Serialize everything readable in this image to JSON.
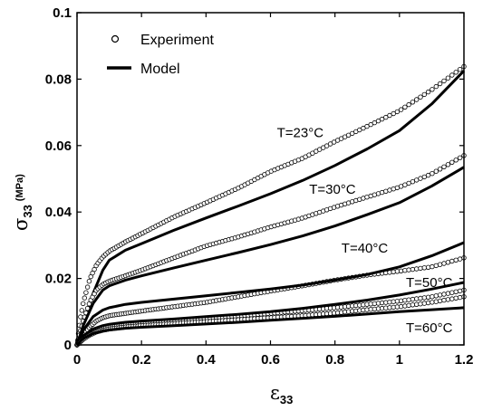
{
  "chart_data": {
    "type": "scatter",
    "title": "",
    "xlabel": {
      "symbol": "ε",
      "subscript": "33"
    },
    "ylabel": {
      "symbol": "σ",
      "subscript": "33",
      "unit": "(MPa)"
    },
    "xlim": [
      0,
      1.2
    ],
    "ylim": [
      0,
      0.1
    ],
    "x_ticks": [
      "0",
      "0.2",
      "0.4",
      "0.6",
      "0.8",
      "1",
      "1.2"
    ],
    "y_ticks": [
      "0",
      "0.02",
      "0.04",
      "0.06",
      "0.08",
      "0.1"
    ],
    "grid": false,
    "legend": {
      "placement": "top-left",
      "entries": [
        {
          "label": "Experiment",
          "marker": "open-circle"
        },
        {
          "label": "Model",
          "marker": "thick-line"
        }
      ]
    },
    "series": [
      {
        "label": "T=23°C",
        "label_at": [
          0.62,
          0.0625
        ],
        "model": {
          "x": [
            0,
            0.02,
            0.05,
            0.08,
            0.1,
            0.15,
            0.2,
            0.3,
            0.4,
            0.5,
            0.6,
            0.7,
            0.8,
            0.9,
            1.0,
            1.1,
            1.2
          ],
          "y": [
            0,
            0.0065,
            0.0155,
            0.0225,
            0.0255,
            0.0285,
            0.0305,
            0.0345,
            0.0382,
            0.0418,
            0.0455,
            0.0495,
            0.054,
            0.059,
            0.0645,
            0.0725,
            0.0825
          ]
        },
        "experiment": {
          "x": [
            0,
            0.01,
            0.02,
            0.04,
            0.06,
            0.08,
            0.1,
            0.15,
            0.2,
            0.3,
            0.4,
            0.5,
            0.6,
            0.7,
            0.8,
            0.9,
            1.0,
            1.1,
            1.2
          ],
          "y": [
            0,
            0.008,
            0.013,
            0.02,
            0.024,
            0.0265,
            0.0282,
            0.031,
            0.0335,
            0.0385,
            0.0428,
            0.0472,
            0.0522,
            0.0562,
            0.0612,
            0.0658,
            0.0705,
            0.0768,
            0.0838
          ]
        }
      },
      {
        "label": "T=30°C",
        "label_at": [
          0.72,
          0.0455
        ],
        "model": {
          "x": [
            0,
            0.02,
            0.05,
            0.08,
            0.1,
            0.15,
            0.2,
            0.3,
            0.4,
            0.5,
            0.6,
            0.7,
            0.8,
            0.9,
            1.0,
            1.1,
            1.2
          ],
          "y": [
            0,
            0.006,
            0.0125,
            0.0165,
            0.0178,
            0.0195,
            0.0208,
            0.0232,
            0.0255,
            0.0278,
            0.0302,
            0.0328,
            0.0358,
            0.0392,
            0.0428,
            0.0478,
            0.0535
          ]
        },
        "experiment": {
          "x": [
            0,
            0.01,
            0.02,
            0.04,
            0.06,
            0.08,
            0.1,
            0.15,
            0.2,
            0.3,
            0.4,
            0.5,
            0.6,
            0.7,
            0.8,
            0.9,
            1.0,
            1.1,
            1.2
          ],
          "y": [
            0,
            0.004,
            0.0075,
            0.013,
            0.0165,
            0.0182,
            0.0192,
            0.0208,
            0.0225,
            0.0262,
            0.0298,
            0.0325,
            0.0355,
            0.0382,
            0.0415,
            0.0445,
            0.0475,
            0.0515,
            0.057
          ]
        }
      },
      {
        "label": "T=40°C",
        "label_at": [
          0.82,
          0.0278
        ],
        "model": {
          "x": [
            0,
            0.02,
            0.05,
            0.08,
            0.1,
            0.15,
            0.2,
            0.3,
            0.4,
            0.5,
            0.6,
            0.7,
            0.8,
            0.9,
            1.0,
            1.1,
            1.2
          ],
          "y": [
            0,
            0.0045,
            0.0085,
            0.0105,
            0.0112,
            0.0122,
            0.0128,
            0.0138,
            0.0148,
            0.0158,
            0.0168,
            0.018,
            0.0195,
            0.0212,
            0.0235,
            0.0268,
            0.0308
          ]
        },
        "experiment": {
          "x": [
            0,
            0.02,
            0.04,
            0.06,
            0.08,
            0.1,
            0.15,
            0.2,
            0.3,
            0.4,
            0.5,
            0.6,
            0.7,
            0.8,
            0.9,
            1.0,
            1.1,
            1.2
          ],
          "y": [
            0,
            0.003,
            0.0055,
            0.0072,
            0.0082,
            0.0088,
            0.0095,
            0.0102,
            0.0115,
            0.0128,
            0.0145,
            0.0162,
            0.0178,
            0.0195,
            0.021,
            0.0222,
            0.0235,
            0.0262
          ]
        }
      },
      {
        "label": "T=50°C",
        "label_at": [
          1.02,
          0.0175
        ],
        "model": {
          "x": [
            0,
            0.02,
            0.05,
            0.08,
            0.1,
            0.15,
            0.2,
            0.3,
            0.4,
            0.5,
            0.6,
            0.7,
            0.8,
            0.9,
            1.0,
            1.1,
            1.2
          ],
          "y": [
            0,
            0.0028,
            0.0048,
            0.0058,
            0.0062,
            0.0068,
            0.0072,
            0.0078,
            0.0085,
            0.0092,
            0.01,
            0.011,
            0.0122,
            0.0135,
            0.015,
            0.0168,
            0.0188
          ]
        },
        "experiment": {
          "x": [
            0,
            0.02,
            0.04,
            0.06,
            0.08,
            0.1,
            0.15,
            0.2,
            0.3,
            0.4,
            0.5,
            0.6,
            0.7,
            0.8,
            0.9,
            1.0,
            1.1,
            1.2
          ],
          "y": [
            0,
            0.0022,
            0.0035,
            0.0044,
            0.005,
            0.0054,
            0.006,
            0.0065,
            0.0072,
            0.008,
            0.0087,
            0.0095,
            0.0103,
            0.0112,
            0.0122,
            0.0132,
            0.0145,
            0.0165
          ]
        }
      },
      {
        "label": "T=60°C",
        "label_at": [
          1.02,
          0.0038
        ],
        "model": {
          "x": [
            0,
            0.02,
            0.05,
            0.08,
            0.1,
            0.15,
            0.2,
            0.3,
            0.4,
            0.5,
            0.6,
            0.7,
            0.8,
            0.9,
            1.0,
            1.1,
            1.2
          ],
          "y": [
            0,
            0.002,
            0.0035,
            0.0042,
            0.0045,
            0.005,
            0.0053,
            0.0058,
            0.0063,
            0.0068,
            0.0074,
            0.008,
            0.0086,
            0.0093,
            0.01,
            0.0106,
            0.0112
          ]
        },
        "experiment": {
          "x": [
            0,
            0.02,
            0.04,
            0.06,
            0.08,
            0.1,
            0.15,
            0.2,
            0.3,
            0.4,
            0.5,
            0.6,
            0.7,
            0.8,
            0.9,
            1.0,
            1.1,
            1.2
          ],
          "y": [
            0,
            0.0018,
            0.003,
            0.0039,
            0.0044,
            0.0048,
            0.0054,
            0.0058,
            0.0064,
            0.007,
            0.0076,
            0.0082,
            0.0088,
            0.0096,
            0.0106,
            0.0115,
            0.0128,
            0.0145
          ]
        }
      }
    ]
  }
}
